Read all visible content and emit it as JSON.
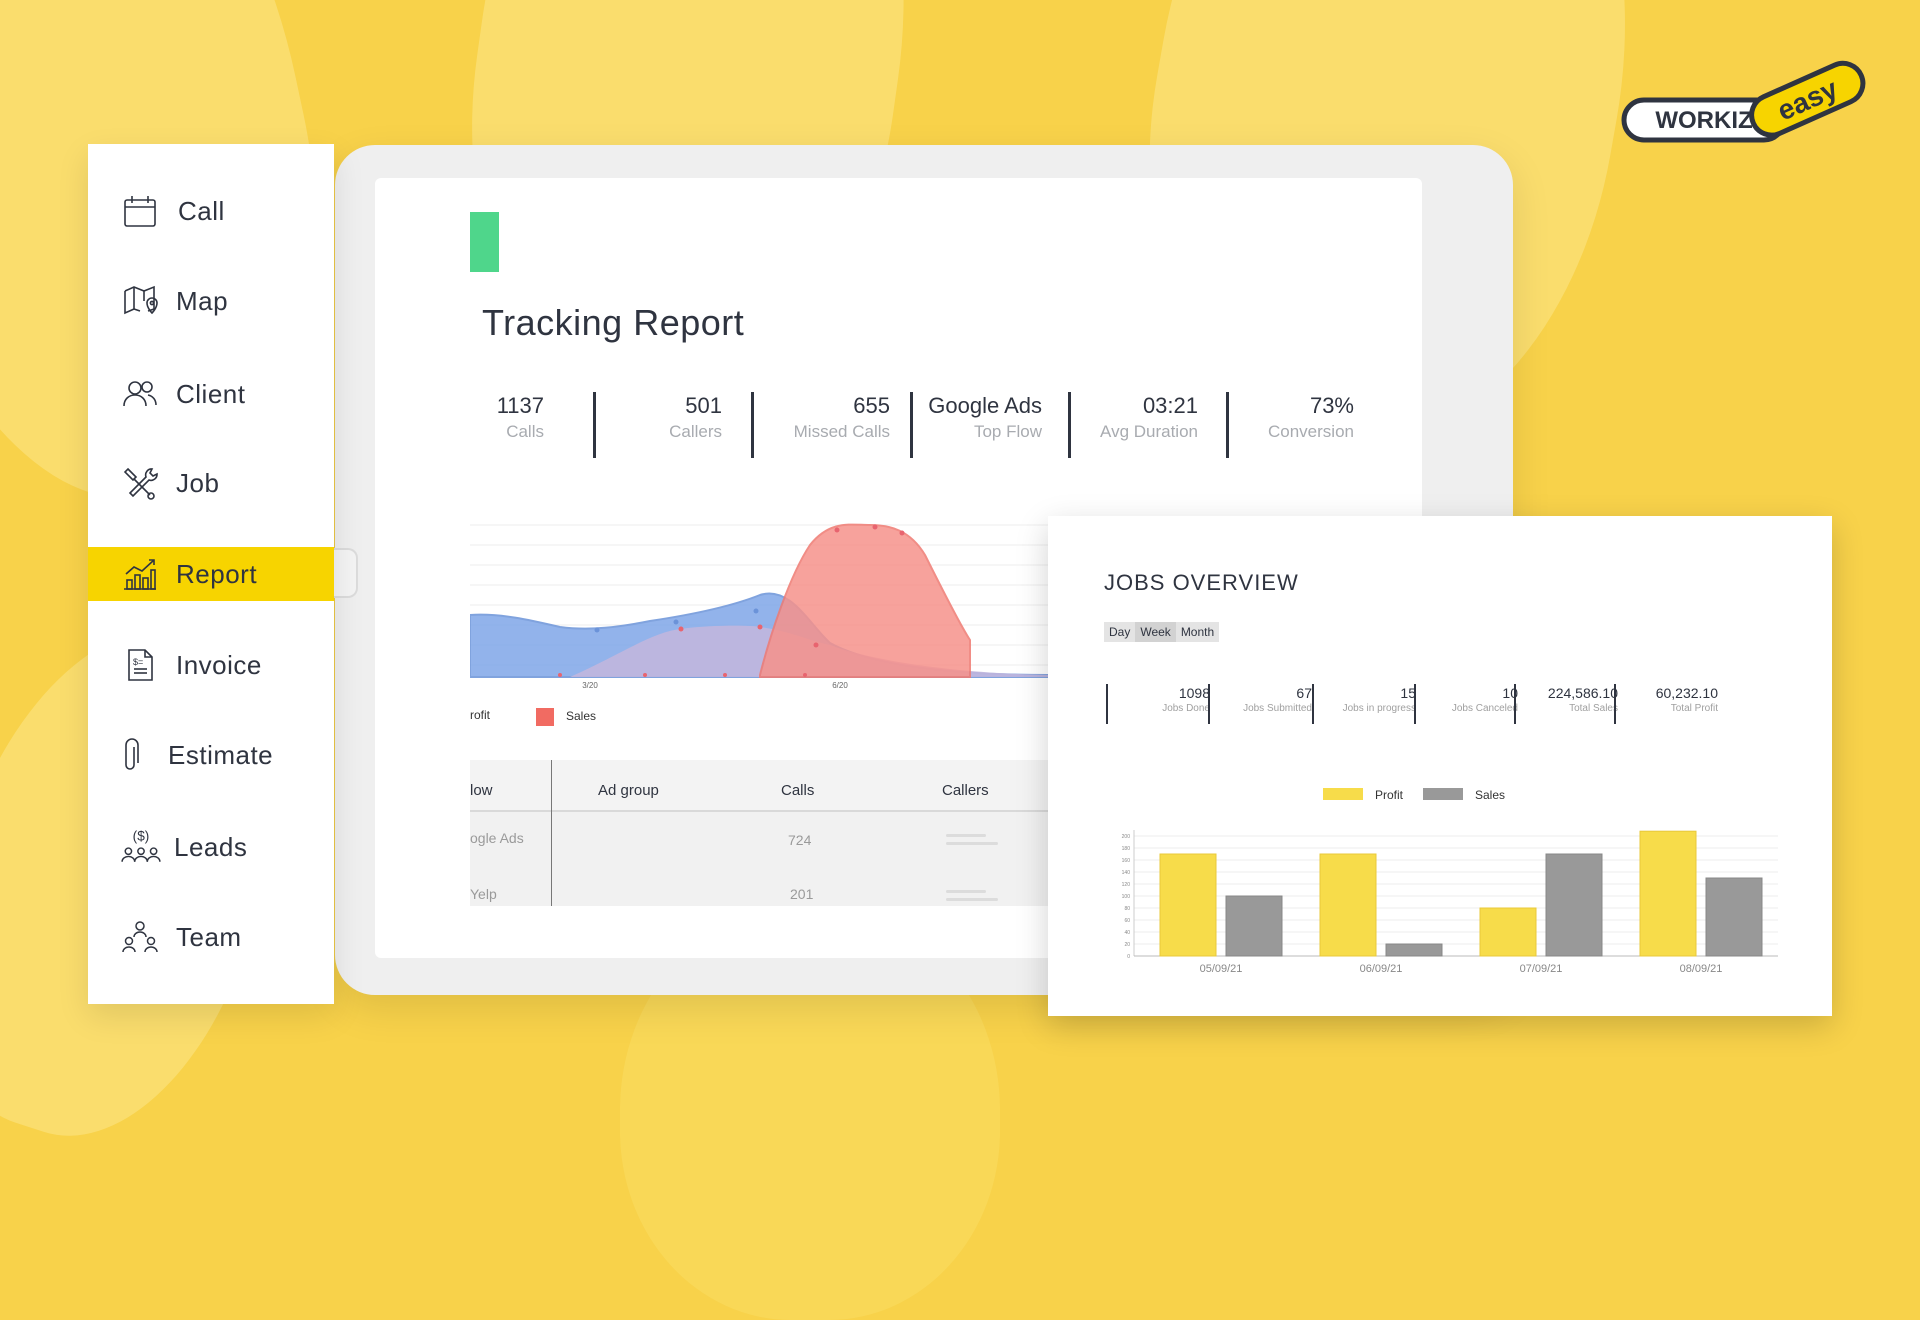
{
  "brand": {
    "logo_main": "WORKIZ",
    "logo_sub": "easy",
    "colors": {
      "accent": "#f7d400",
      "background": "#f8d24a",
      "dark": "#2f3440",
      "green": "#4fd68b",
      "red": "#f16b62",
      "blue": "#7fa6e8"
    }
  },
  "sidebar": {
    "items": [
      {
        "label": "Call",
        "icon": "calendar-icon"
      },
      {
        "label": "Map",
        "icon": "map-icon"
      },
      {
        "label": "Client",
        "icon": "users-icon"
      },
      {
        "label": "Job",
        "icon": "tools-icon"
      },
      {
        "label": "Report",
        "icon": "chart-icon",
        "active": true
      },
      {
        "label": "Invoice",
        "icon": "document-dollar-icon"
      },
      {
        "label": "Estimate",
        "icon": "paperclip-icon"
      },
      {
        "label": "Leads",
        "icon": "dollar-people-icon",
        "icon_text": "($)"
      },
      {
        "label": "Team",
        "icon": "team-icon"
      }
    ]
  },
  "report": {
    "title": "Tracking Report",
    "stats": [
      {
        "value": "1137",
        "label": "Calls"
      },
      {
        "value": "501",
        "label": "Callers"
      },
      {
        "value": "655",
        "label": "Missed Calls"
      },
      {
        "value": "Google Ads",
        "label": "Top Flow"
      },
      {
        "value": "03:21",
        "label": "Avg Duration"
      },
      {
        "value": "73%",
        "label": "Conversion"
      }
    ],
    "area_chart": {
      "type": "area",
      "x_ticks": [
        "3/20",
        "6/20"
      ],
      "legend": [
        "Profit",
        "Sales"
      ],
      "legend_visible": [
        "rofit",
        "Sales"
      ]
    },
    "table": {
      "headers": [
        "low",
        "Ad group",
        "Calls",
        "Callers"
      ],
      "rows": [
        {
          "flow": "ogle Ads",
          "ad_group": "",
          "calls": "724"
        },
        {
          "flow": "Yelp",
          "ad_group": "",
          "calls": "201"
        }
      ]
    }
  },
  "jobs": {
    "title": "JOBS OVERVIEW",
    "tabs": [
      "Day",
      "Week",
      "Month"
    ],
    "active_tab": "Week",
    "stats": [
      {
        "value": "1098",
        "label": "Jobs Done"
      },
      {
        "value": "67",
        "label": "Jobs Submitted"
      },
      {
        "value": "15",
        "label": "Jobs in progress"
      },
      {
        "value": "10",
        "label": "Jobs Canceled"
      },
      {
        "value": "224,586.10",
        "label": "Total Sales"
      },
      {
        "value": "60,232.10",
        "label": "Total Profit"
      }
    ]
  },
  "chart_data": {
    "type": "bar",
    "categories": [
      "05/09/21",
      "06/09/21",
      "07/09/21",
      "08/09/21"
    ],
    "series": [
      {
        "name": "Profit",
        "color": "#f7dc4a",
        "values": [
          170,
          170,
          80,
          208
        ]
      },
      {
        "name": "Sales",
        "color": "#999999",
        "values": [
          100,
          20,
          170,
          130
        ]
      }
    ],
    "ylim": [
      0,
      200
    ],
    "y_ticks": [
      "0",
      "20",
      "40",
      "60",
      "80",
      "100",
      "120",
      "140",
      "160",
      "180",
      "200"
    ],
    "legend_position": "top-center",
    "grid": true
  }
}
